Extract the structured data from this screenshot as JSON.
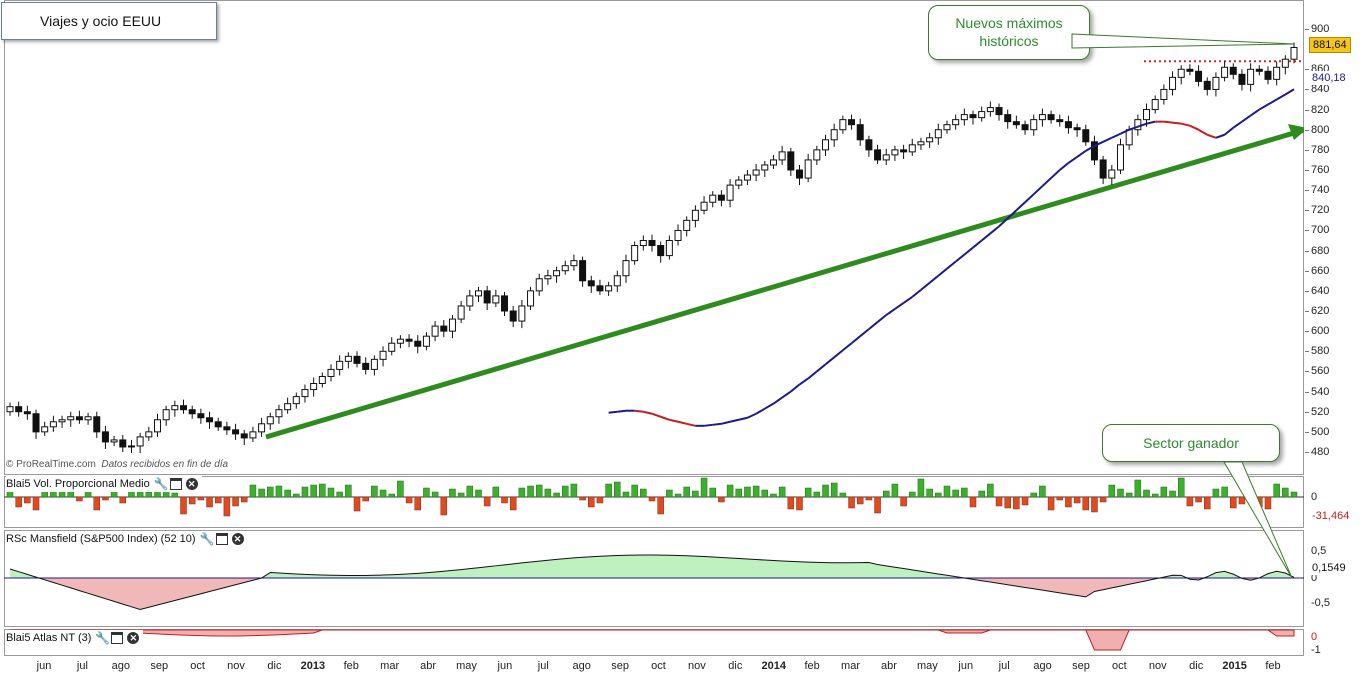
{
  "title": "Viajes y ocio EEUU",
  "credit": {
    "source": "© ProRealTime.com",
    "note": "Datos recibidos en fin de día"
  },
  "callouts": {
    "new_highs": [
      "Nuevos máximos",
      "históricos"
    ],
    "winner": "Sector ganador"
  },
  "colors": {
    "trend_line": "#2e8b1e",
    "ma_up": "#1a1a8c",
    "ma_down": "#c41e1e",
    "vol_up": "#3cb02a",
    "vol_down": "#e04a20",
    "rs_pos": "#bff0bf",
    "rs_neg": "#f0b8b8",
    "callout_text": "#2f8a2f",
    "last_price_tag": "#f5c518"
  },
  "price_axis": {
    "ticks": [
      480,
      500,
      520,
      540,
      560,
      580,
      600,
      620,
      640,
      660,
      680,
      700,
      720,
      740,
      760,
      780,
      800,
      820,
      840,
      860,
      900
    ]
  },
  "last_price": "881,64",
  "ma_value": "840,18",
  "x_labels": [
    "jun",
    "jul",
    "ago",
    "sep",
    "oct",
    "nov",
    "dic",
    "2013",
    "feb",
    "mar",
    "abr",
    "may",
    "jun",
    "jul",
    "ago",
    "sep",
    "oct",
    "nov",
    "dic",
    "2014",
    "feb",
    "mar",
    "abr",
    "may",
    "jun",
    "jul",
    "ago",
    "sep",
    "oct",
    "nov",
    "dic",
    "2015",
    "feb"
  ],
  "indicators": {
    "volume": {
      "name": "Blai5 Vol. Proporcional Medio",
      "axis": [
        "0"
      ],
      "value": "-31,464"
    },
    "mansfield": {
      "name": "RSc Mansfield (S&P500 Index) (52 10)",
      "axis": [
        "0,5",
        "0",
        "-0,5"
      ],
      "value": "0,1549"
    },
    "atlas": {
      "name": "Blai5 Atlas NT (3)",
      "axis": [
        "0",
        "-1"
      ]
    }
  },
  "chart_data": {
    "type": "candlestick",
    "title": "Viajes y ocio EEUU",
    "interval": "weekly",
    "ylim": [
      470,
      910
    ],
    "x_range": [
      "2012-05",
      "2015-02"
    ],
    "series": [
      {
        "name": "close",
        "values": [
          525,
          520,
          518,
          500,
          505,
          510,
          512,
          515,
          512,
          515,
          500,
          490,
          492,
          485,
          486,
          495,
          500,
          512,
          522,
          526,
          522,
          518,
          514,
          510,
          505,
          502,
          498,
          494,
          500,
          508,
          515,
          522,
          528,
          535,
          542,
          548,
          555,
          562,
          570,
          575,
          568,
          562,
          572,
          580,
          588,
          592,
          590,
          585,
          595,
          605,
          600,
          612,
          625,
          635,
          640,
          628,
          635,
          620,
          610,
          625,
          640,
          652,
          655,
          660,
          665,
          670,
          650,
          645,
          640,
          645,
          655,
          670,
          685,
          690,
          685,
          675,
          690,
          700,
          710,
          720,
          728,
          735,
          730,
          745,
          750,
          755,
          760,
          765,
          770,
          778,
          760,
          752,
          770,
          780,
          790,
          800,
          810,
          805,
          790,
          780,
          770,
          775,
          780,
          778,
          785,
          788,
          792,
          800,
          805,
          810,
          815,
          812,
          818,
          822,
          815,
          808,
          805,
          800,
          810,
          815,
          810,
          808,
          802,
          800,
          788,
          770,
          752,
          760,
          785,
          800,
          810,
          820,
          830,
          840,
          852,
          860,
          858,
          848,
          840,
          852,
          862,
          855,
          845,
          860,
          858,
          850,
          862,
          870,
          881.64
        ]
      },
      {
        "name": "moving_average",
        "values": [
          519,
          520,
          521,
          521,
          520,
          518,
          515,
          512,
          510,
          508,
          506,
          506,
          507,
          508,
          510,
          512,
          514,
          518,
          523,
          528,
          534,
          540,
          547,
          553,
          560,
          567,
          574,
          581,
          588,
          595,
          602,
          609,
          616,
          622,
          628,
          634,
          641,
          648,
          655,
          662,
          669,
          676,
          683,
          690,
          697,
          704,
          712,
          720,
          728,
          736,
          744,
          752,
          760,
          767,
          773,
          779,
          784,
          788,
          792,
          796,
          800,
          803,
          806,
          808,
          808,
          807,
          806,
          804,
          800,
          795,
          792,
          795,
          802,
          808,
          814,
          820,
          825,
          830,
          835,
          840.18
        ]
      }
    ],
    "annotations": [
      "Nuevos máximos históricos",
      "Sector ganador"
    ]
  }
}
